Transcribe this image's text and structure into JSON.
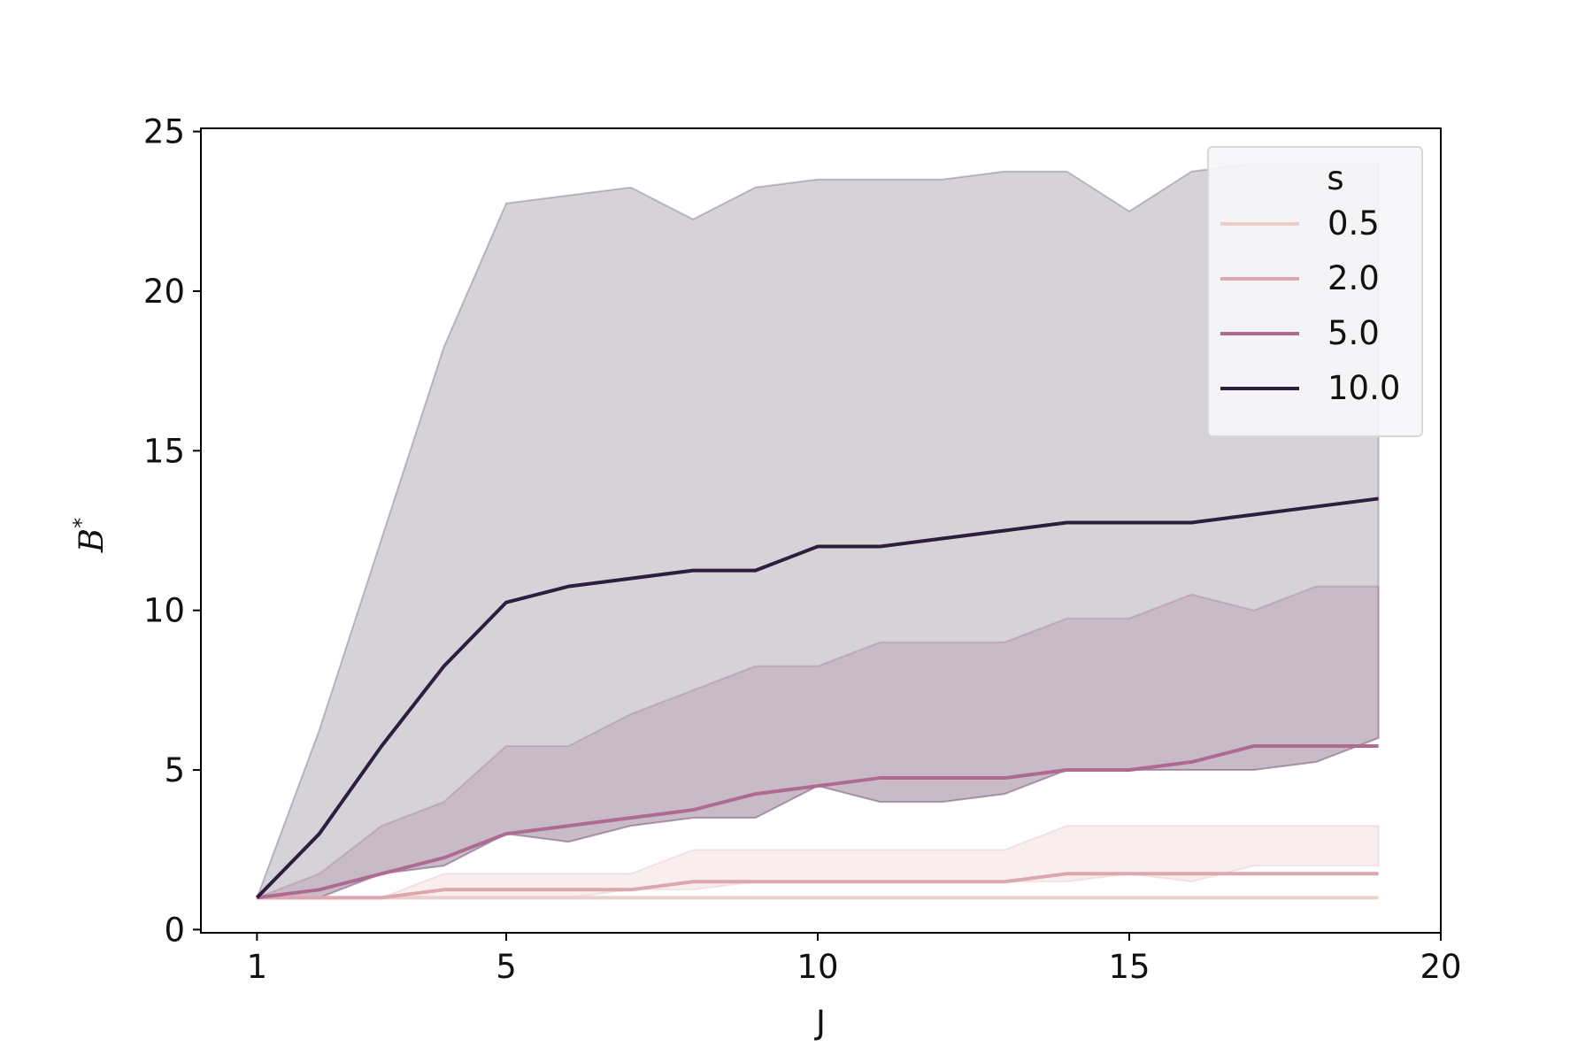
{
  "chart_data": {
    "type": "line",
    "xlabel": "J",
    "ylabel": "B",
    "ylabel_superscript": "*",
    "xlim": [
      0.1,
      20
    ],
    "ylim": [
      -0.1,
      25.1
    ],
    "xticks": [
      1,
      5,
      10,
      15,
      20
    ],
    "yticks": [
      0,
      5,
      10,
      15,
      20,
      25
    ],
    "xtick_labels": [
      "1",
      "5",
      "10",
      "15",
      "20"
    ],
    "ytick_labels": [
      "0",
      "5",
      "10",
      "15",
      "20",
      "25"
    ],
    "grid": false,
    "legend": {
      "title": "s",
      "placement": "top-right"
    },
    "x": [
      1,
      2,
      3,
      4,
      5,
      6,
      7,
      8,
      9,
      10,
      11,
      12,
      13,
      14,
      15,
      16,
      17,
      18,
      19
    ],
    "series": [
      {
        "name": "0.5",
        "color": "#ebcfcb",
        "values": [
          1,
          1,
          1,
          1,
          1,
          1,
          1,
          1,
          1,
          1,
          1,
          1,
          1,
          1,
          1,
          1,
          1,
          1,
          1
        ],
        "lower": [
          1,
          1,
          1,
          1,
          1,
          1,
          1,
          1,
          1,
          1,
          1,
          1,
          1,
          1,
          1,
          1,
          1,
          1,
          1
        ],
        "upper": [
          1,
          1,
          1,
          1,
          1,
          1,
          1,
          1,
          1,
          1,
          1,
          1,
          1,
          1,
          1,
          1,
          1,
          1,
          1
        ]
      },
      {
        "name": "2.0",
        "color": "#dca7ae",
        "values": [
          1,
          1,
          1,
          1.25,
          1.25,
          1.25,
          1.25,
          1.5,
          1.5,
          1.5,
          1.5,
          1.5,
          1.5,
          1.75,
          1.75,
          1.75,
          1.75,
          1.75,
          1.75
        ],
        "lower": [
          1,
          1,
          1,
          1,
          1,
          1,
          1.25,
          1.25,
          1.5,
          1.5,
          1.5,
          1.5,
          1.5,
          1.5,
          1.75,
          1.5,
          2,
          2,
          2
        ],
        "upper": [
          1,
          1,
          1,
          1.75,
          1.75,
          1.75,
          1.75,
          2.5,
          2.5,
          2.5,
          2.5,
          2.5,
          2.5,
          3.25,
          3.25,
          3.25,
          3.25,
          3.25,
          3.25
        ]
      },
      {
        "name": "5.0",
        "color": "#af6a94",
        "values": [
          1,
          1.25,
          1.75,
          2.25,
          3,
          3.25,
          3.5,
          3.75,
          4.25,
          4.5,
          4.75,
          4.75,
          4.75,
          5,
          5,
          5.25,
          5.75,
          5.75,
          5.75
        ],
        "lower": [
          1,
          1,
          1.75,
          2,
          3,
          2.75,
          3.25,
          3.5,
          3.5,
          4.5,
          4,
          4,
          4.25,
          5,
          5,
          5,
          5,
          5.25,
          6
        ],
        "upper": [
          1,
          1.75,
          3.25,
          4,
          5.75,
          5.75,
          6.75,
          7.5,
          8.25,
          8.25,
          9,
          9,
          9,
          9.75,
          9.75,
          10.5,
          10,
          10.75,
          10.75
        ]
      },
      {
        "name": "10.0",
        "color": "#2d1e3e",
        "values": [
          1,
          3,
          5.75,
          8.25,
          10.25,
          10.75,
          11,
          11.25,
          11.25,
          12,
          12,
          12.25,
          12.5,
          12.75,
          12.75,
          12.75,
          13,
          13.25,
          13.5
        ],
        "lower": [
          1,
          1,
          1.75,
          2,
          3,
          2.75,
          3.25,
          3.5,
          3.5,
          4.5,
          4,
          4,
          4.25,
          5,
          5,
          5,
          5,
          5.25,
          6
        ],
        "upper": [
          1,
          6.25,
          12.25,
          18.25,
          22.75,
          23,
          23.25,
          22.25,
          23.25,
          23.5,
          23.5,
          23.5,
          23.75,
          23.75,
          22.5,
          23.75,
          24,
          24,
          24
        ]
      }
    ]
  }
}
